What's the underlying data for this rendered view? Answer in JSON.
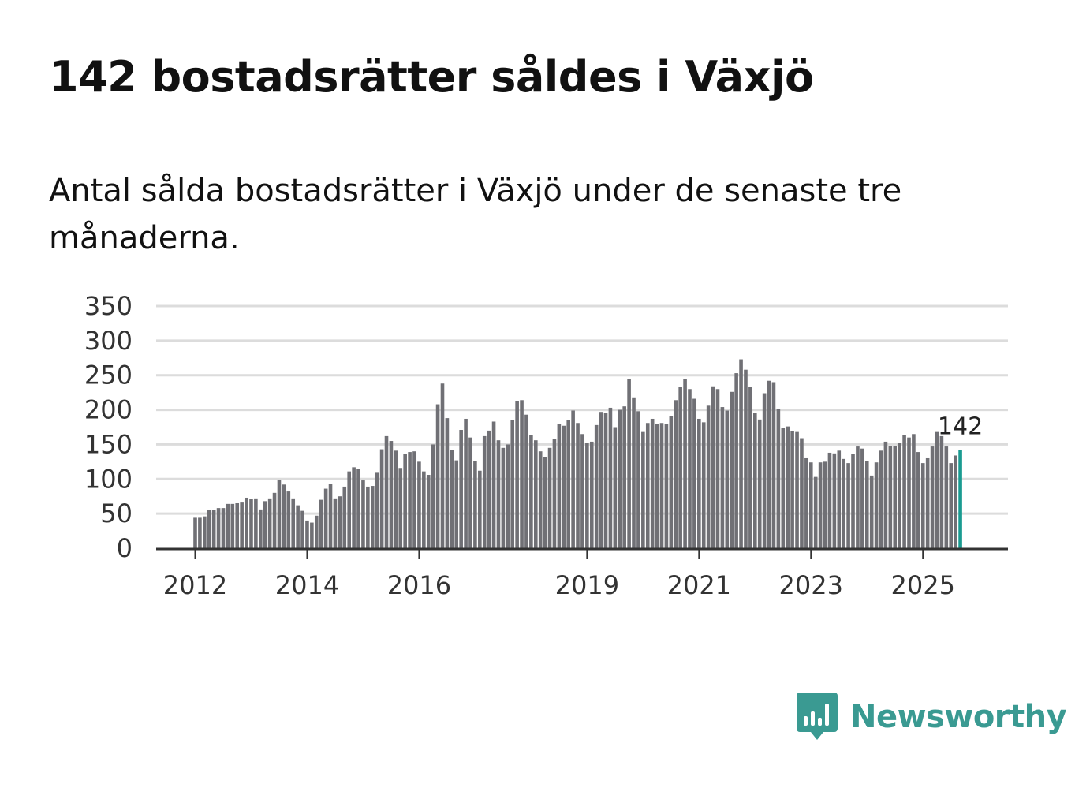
{
  "title": "142 bostadsrätter såldes i Växjö",
  "subtitle": "Antal sålda bostadsrätter i Växjö under de senaste tre månaderna.",
  "colors": {
    "bar": "#707075",
    "highlight": "#1a9b91",
    "grid": "#dcdcdc",
    "axis": "#333333",
    "brand": "#3a9a92"
  },
  "brand": {
    "name": "Newsworthy",
    "icon": "bar-chart-speech-bubble-icon"
  },
  "chart_data": {
    "type": "bar",
    "title": "142 bostadsrätter såldes i Växjö",
    "subtitle": "Antal sålda bostadsrätter i Växjö under de senaste tre månaderna.",
    "xlabel": "",
    "ylabel": "",
    "ylim": [
      0,
      350
    ],
    "yticks": [
      0,
      50,
      100,
      150,
      200,
      250,
      300,
      350
    ],
    "grid": true,
    "x_start": "2012-01",
    "x_end": "2025-09",
    "xticks": [
      "2012",
      "2014",
      "2016",
      "2019",
      "2021",
      "2023",
      "2025"
    ],
    "values": [
      44,
      44,
      46,
      55,
      55,
      58,
      58,
      64,
      64,
      65,
      66,
      73,
      71,
      72,
      56,
      68,
      72,
      80,
      99,
      92,
      82,
      72,
      62,
      54,
      40,
      37,
      47,
      70,
      86,
      93,
      72,
      75,
      89,
      111,
      117,
      115,
      98,
      89,
      90,
      109,
      143,
      162,
      155,
      141,
      116,
      136,
      139,
      140,
      125,
      111,
      106,
      150,
      208,
      238,
      188,
      142,
      127,
      171,
      187,
      160,
      126,
      112,
      162,
      170,
      183,
      156,
      145,
      150,
      185,
      213,
      214,
      193,
      164,
      156,
      140,
      132,
      145,
      158,
      179,
      177,
      185,
      199,
      181,
      165,
      152,
      154,
      178,
      197,
      195,
      203,
      175,
      200,
      205,
      245,
      218,
      198,
      168,
      181,
      187,
      179,
      181,
      179,
      191,
      214,
      233,
      244,
      230,
      216,
      187,
      182,
      206,
      234,
      230,
      204,
      199,
      226,
      253,
      273,
      258,
      233,
      195,
      186,
      224,
      242,
      240,
      201,
      174,
      176,
      169,
      168,
      159,
      130,
      124,
      103,
      124,
      125,
      138,
      137,
      141,
      129,
      123,
      136,
      147,
      144,
      126,
      105,
      124,
      141,
      154,
      148,
      148,
      152,
      164,
      160,
      165,
      139,
      123,
      130,
      147,
      168,
      162,
      147,
      123,
      134,
      142
    ],
    "highlight_last": true,
    "data_labels": [
      {
        "value": "142",
        "index": "last"
      }
    ]
  }
}
